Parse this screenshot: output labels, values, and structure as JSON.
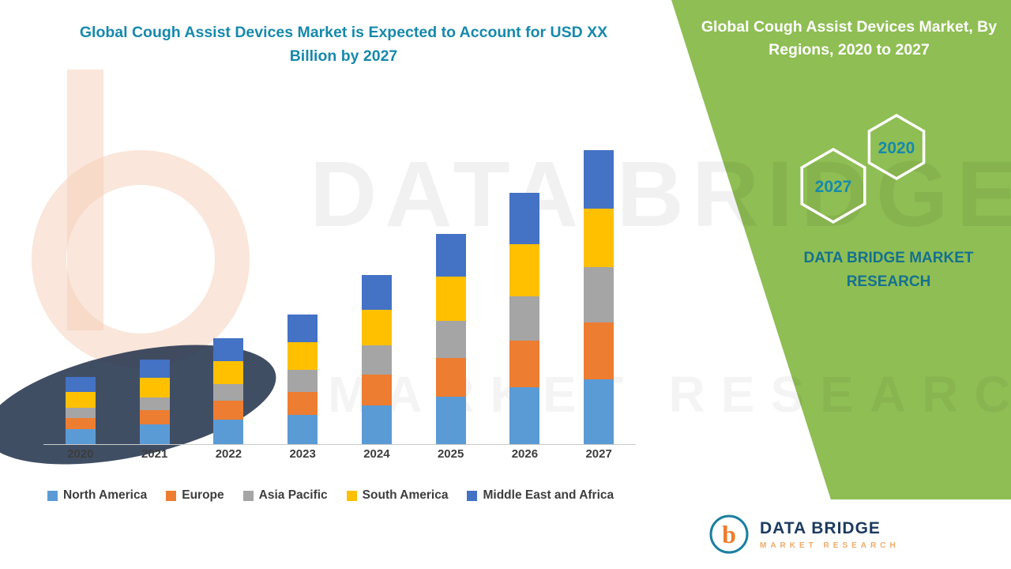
{
  "header": {
    "left_title": "Global Cough Assist Devices Market is Expected to Account for USD XX Billion by 2027",
    "right_title": "Global Cough Assist Devices Market, By Regions, 2020 to 2027"
  },
  "side_panel": {
    "hexagons": [
      {
        "label": "2027"
      },
      {
        "label": "2020"
      }
    ],
    "brand_text": "DATA BRIDGE MARKET RESEARCH"
  },
  "watermark": {
    "line1": "DATA BRIDGE",
    "line2": "MARKET RESEARCH"
  },
  "footer_logo": {
    "letter": "b",
    "title": "DATA BRIDGE",
    "subtitle": "MARKET RESEARCH"
  },
  "colors": {
    "green": "#8fbe54",
    "teal": "#1789ab",
    "teal_dark": "#15718f",
    "navy": "#1b3b5f",
    "orange": "#ee7c2b",
    "orange_light": "#f2aa66"
  },
  "chart_data": {
    "type": "bar",
    "stacked": true,
    "title": "Global Cough Assist Devices Market, By Regions, 2020 to 2027",
    "xlabel": "",
    "ylabel": "",
    "units": "USD Billion (actual figures masked as XX; values estimated from bar heights)",
    "ylim": [
      0,
      20
    ],
    "grid": false,
    "legend_position": "bottom",
    "categories": [
      "2020",
      "2021",
      "2022",
      "2023",
      "2024",
      "2025",
      "2026",
      "2027"
    ],
    "series": [
      {
        "name": "North America",
        "color": "#5B9BD5",
        "values": [
          1.0,
          1.3,
          1.6,
          1.9,
          2.5,
          3.1,
          3.7,
          4.2
        ]
      },
      {
        "name": "Europe",
        "color": "#ED7D31",
        "values": [
          0.7,
          0.9,
          1.2,
          1.5,
          2.0,
          2.5,
          3.0,
          3.7
        ]
      },
      {
        "name": "Asia Pacific",
        "color": "#A5A5A5",
        "values": [
          0.65,
          0.85,
          1.1,
          1.4,
          1.9,
          2.4,
          2.9,
          3.6
        ]
      },
      {
        "name": "South America",
        "color": "#FFC000",
        "values": [
          1.05,
          1.25,
          1.5,
          1.8,
          2.3,
          2.85,
          3.4,
          3.8
        ]
      },
      {
        "name": "Middle East and Africa",
        "color": "#4472C4",
        "values": [
          0.95,
          1.2,
          1.45,
          1.8,
          2.3,
          2.8,
          3.3,
          3.8
        ]
      }
    ]
  }
}
